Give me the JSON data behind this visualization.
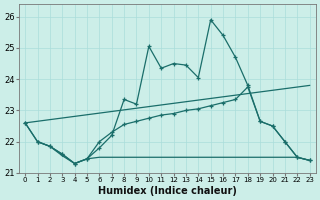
{
  "xlabel": "Humidex (Indice chaleur)",
  "bg_color": "#cceee8",
  "line_color": "#1a6e6a",
  "grid_color": "#aaddda",
  "xlim": [
    -0.5,
    23.5
  ],
  "ylim": [
    21.0,
    26.4
  ],
  "yticks": [
    21,
    22,
    23,
    24,
    25,
    26
  ],
  "xticks": [
    0,
    1,
    2,
    3,
    4,
    5,
    6,
    7,
    8,
    9,
    10,
    11,
    12,
    13,
    14,
    15,
    16,
    17,
    18,
    19,
    20,
    21,
    22,
    23
  ],
  "line1_x": [
    0,
    1,
    2,
    3,
    4,
    5,
    6,
    7,
    8,
    9,
    10,
    11,
    12,
    13,
    14,
    15,
    16,
    17,
    18,
    19,
    20,
    21,
    22,
    23
  ],
  "line1_y": [
    22.6,
    22.0,
    21.85,
    21.6,
    21.3,
    21.45,
    21.8,
    22.2,
    23.35,
    23.2,
    25.05,
    24.35,
    24.5,
    24.45,
    24.05,
    25.9,
    25.4,
    24.7,
    23.8,
    22.65,
    22.5,
    22.0,
    21.5,
    21.4
  ],
  "line2_x": [
    0,
    1,
    2,
    3,
    4,
    5,
    6,
    7,
    8,
    9,
    10,
    11,
    12,
    13,
    14,
    15,
    16,
    17,
    18,
    19,
    20,
    21,
    22,
    23
  ],
  "line2_y": [
    22.6,
    22.0,
    21.85,
    21.6,
    21.3,
    21.45,
    22.0,
    22.3,
    22.55,
    22.65,
    22.75,
    22.85,
    22.9,
    23.0,
    23.05,
    23.15,
    23.25,
    23.35,
    23.75,
    22.65,
    22.5,
    22.0,
    21.5,
    21.4
  ],
  "line3_x": [
    0,
    23
  ],
  "line3_y": [
    22.6,
    23.8
  ],
  "line4_x": [
    1,
    2,
    3,
    4,
    5,
    6,
    7,
    8,
    9,
    10,
    11,
    12,
    13,
    14,
    15,
    16,
    17,
    18,
    19,
    20,
    21,
    22,
    23
  ],
  "line4_y": [
    22.0,
    21.85,
    21.55,
    21.3,
    21.45,
    21.5,
    21.5,
    21.5,
    21.5,
    21.5,
    21.5,
    21.5,
    21.5,
    21.5,
    21.5,
    21.5,
    21.5,
    21.5,
    21.5,
    21.5,
    21.5,
    21.5,
    21.4
  ]
}
